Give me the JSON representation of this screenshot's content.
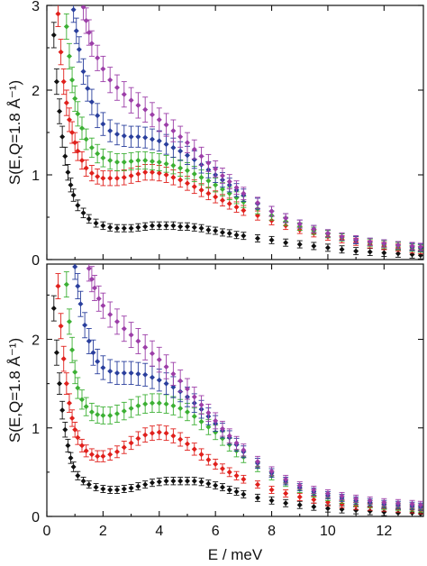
{
  "chart_data": [
    {
      "type": "scatter",
      "title": "",
      "xlabel": "",
      "ylabel": "S(E,Q=1.8 Å⁻¹)",
      "xlim": [
        0,
        13.4
      ],
      "ylim": [
        0,
        3
      ],
      "xticks": [
        0,
        2,
        4,
        6,
        8,
        10,
        12
      ],
      "yticks": [
        0,
        1,
        2,
        3
      ],
      "show_x_tick_labels": false,
      "error_bars": true,
      "series": [
        {
          "color": "#111111",
          "x": [
            0.25,
            0.35,
            0.45,
            0.55,
            0.65,
            0.75,
            0.85,
            0.95,
            1.1,
            1.3,
            1.5,
            1.75,
            2.0,
            2.25,
            2.5,
            2.75,
            3.0,
            3.25,
            3.5,
            3.75,
            4.0,
            4.25,
            4.5,
            4.75,
            5.0,
            5.25,
            5.5,
            5.75,
            6.0,
            6.25,
            6.5,
            6.75,
            7.0,
            7.5,
            8.0,
            8.5,
            9.0,
            9.5,
            10.0,
            10.5,
            11.0,
            11.5,
            12.0,
            12.5,
            13.0,
            13.3
          ],
          "y": [
            2.65,
            2.1,
            1.75,
            1.45,
            1.22,
            1.03,
            0.88,
            0.76,
            0.64,
            0.55,
            0.48,
            0.43,
            0.4,
            0.38,
            0.37,
            0.37,
            0.37,
            0.38,
            0.39,
            0.4,
            0.4,
            0.4,
            0.4,
            0.39,
            0.39,
            0.38,
            0.37,
            0.35,
            0.34,
            0.32,
            0.31,
            0.29,
            0.28,
            0.25,
            0.23,
            0.2,
            0.18,
            0.16,
            0.14,
            0.12,
            0.1,
            0.09,
            0.08,
            0.07,
            0.06,
            0.05
          ]
        },
        {
          "color": "#e0201c",
          "x": [
            0.4,
            0.5,
            0.6,
            0.7,
            0.8,
            0.9,
            1.0,
            1.1,
            1.25,
            1.4,
            1.6,
            1.8,
            2.0,
            2.25,
            2.5,
            2.75,
            3.0,
            3.25,
            3.5,
            3.75,
            4.0,
            4.25,
            4.5,
            4.75,
            5.0,
            5.25,
            5.5,
            5.75,
            6.0,
            6.25,
            6.5,
            6.75,
            7.0,
            7.5,
            8.0,
            8.5,
            9.0,
            9.5,
            10.0,
            10.5,
            11.0,
            11.5,
            12.0,
            12.5,
            13.0,
            13.3
          ],
          "y": [
            2.9,
            2.45,
            2.1,
            1.85,
            1.65,
            1.5,
            1.38,
            1.28,
            1.17,
            1.08,
            1.02,
            0.98,
            0.96,
            0.96,
            0.96,
            0.97,
            0.99,
            1.01,
            1.03,
            1.03,
            1.02,
            1.0,
            0.97,
            0.94,
            0.9,
            0.86,
            0.82,
            0.78,
            0.74,
            0.7,
            0.66,
            0.62,
            0.58,
            0.52,
            0.46,
            0.4,
            0.35,
            0.31,
            0.27,
            0.24,
            0.21,
            0.18,
            0.16,
            0.14,
            0.12,
            0.11
          ]
        },
        {
          "color": "#3cb034",
          "x": [
            0.7,
            0.8,
            0.9,
            1.0,
            1.1,
            1.25,
            1.4,
            1.6,
            1.8,
            2.0,
            2.25,
            2.5,
            2.75,
            3.0,
            3.25,
            3.5,
            3.75,
            4.0,
            4.25,
            4.5,
            4.75,
            5.0,
            5.25,
            5.5,
            5.75,
            6.0,
            6.25,
            6.5,
            6.75,
            7.0,
            7.5,
            8.0,
            8.5,
            9.0,
            9.5,
            10.0,
            10.5,
            11.0,
            11.5,
            12.0,
            12.5,
            13.0,
            13.3
          ],
          "y": [
            2.75,
            2.4,
            2.12,
            1.9,
            1.72,
            1.55,
            1.42,
            1.32,
            1.25,
            1.2,
            1.17,
            1.15,
            1.15,
            1.16,
            1.17,
            1.17,
            1.16,
            1.15,
            1.13,
            1.11,
            1.08,
            1.05,
            1.01,
            0.97,
            0.93,
            0.88,
            0.83,
            0.78,
            0.73,
            0.68,
            0.6,
            0.52,
            0.45,
            0.39,
            0.34,
            0.3,
            0.26,
            0.23,
            0.2,
            0.18,
            0.16,
            0.14,
            0.13
          ]
        },
        {
          "color": "#2a3f9d",
          "x": [
            0.95,
            1.05,
            1.15,
            1.3,
            1.45,
            1.6,
            1.8,
            2.0,
            2.25,
            2.5,
            2.75,
            3.0,
            3.25,
            3.5,
            3.75,
            4.0,
            4.25,
            4.5,
            4.75,
            5.0,
            5.25,
            5.5,
            5.75,
            6.0,
            6.25,
            6.5,
            6.75,
            7.0,
            7.5,
            8.0,
            8.5,
            9.0,
            9.5,
            10.0,
            10.5,
            11.0,
            11.5,
            12.0,
            12.5,
            13.0,
            13.3
          ],
          "y": [
            2.95,
            2.7,
            2.48,
            2.22,
            2.02,
            1.86,
            1.7,
            1.6,
            1.52,
            1.48,
            1.46,
            1.45,
            1.45,
            1.44,
            1.42,
            1.4,
            1.36,
            1.32,
            1.28,
            1.23,
            1.18,
            1.12,
            1.06,
            1.0,
            0.94,
            0.88,
            0.82,
            0.76,
            0.66,
            0.57,
            0.49,
            0.42,
            0.36,
            0.31,
            0.27,
            0.23,
            0.21,
            0.19,
            0.17,
            0.15,
            0.14
          ]
        },
        {
          "color": "#9c3ea8",
          "x": [
            1.3,
            1.4,
            1.5,
            1.6,
            1.8,
            2.0,
            2.25,
            2.5,
            2.75,
            3.0,
            3.25,
            3.5,
            3.75,
            4.0,
            4.25,
            4.5,
            4.75,
            5.0,
            5.25,
            5.5,
            5.75,
            6.0,
            6.25,
            6.5,
            6.75,
            7.0,
            7.5,
            8.0,
            8.5,
            9.0,
            9.5,
            10.0,
            10.5,
            11.0,
            11.5,
            12.0,
            12.5,
            13.0,
            13.3
          ],
          "y": [
            2.98,
            2.82,
            2.68,
            2.55,
            2.38,
            2.25,
            2.12,
            2.03,
            1.95,
            1.88,
            1.82,
            1.77,
            1.71,
            1.65,
            1.59,
            1.52,
            1.45,
            1.38,
            1.3,
            1.22,
            1.14,
            1.07,
            0.99,
            0.92,
            0.85,
            0.78,
            0.67,
            0.57,
            0.49,
            0.42,
            0.36,
            0.31,
            0.27,
            0.24,
            0.21,
            0.19,
            0.17,
            0.16,
            0.15
          ]
        }
      ]
    },
    {
      "type": "scatter",
      "title": "",
      "xlabel": "E / meV",
      "ylabel": "S(E,Q=1.8 Å⁻¹)",
      "xlim": [
        0,
        13.4
      ],
      "ylim": [
        0,
        2.85
      ],
      "xticks": [
        0,
        2,
        4,
        6,
        8,
        10,
        12
      ],
      "yticks": [
        0,
        1,
        2
      ],
      "show_x_tick_labels": true,
      "error_bars": true,
      "series": [
        {
          "color": "#111111",
          "x": [
            0.25,
            0.35,
            0.45,
            0.55,
            0.65,
            0.75,
            0.85,
            0.95,
            1.1,
            1.3,
            1.5,
            1.75,
            2.0,
            2.25,
            2.5,
            2.75,
            3.0,
            3.25,
            3.5,
            3.75,
            4.0,
            4.25,
            4.5,
            4.75,
            5.0,
            5.25,
            5.5,
            5.75,
            6.0,
            6.25,
            6.5,
            6.75,
            7.0,
            7.5,
            8.0,
            8.5,
            9.0,
            9.5,
            10.0,
            10.5,
            11.0,
            11.5,
            12.0,
            12.5,
            13.0,
            13.3
          ],
          "y": [
            2.35,
            1.85,
            1.5,
            1.2,
            0.98,
            0.8,
            0.66,
            0.56,
            0.46,
            0.4,
            0.36,
            0.33,
            0.31,
            0.3,
            0.3,
            0.31,
            0.32,
            0.34,
            0.36,
            0.38,
            0.39,
            0.4,
            0.4,
            0.4,
            0.4,
            0.4,
            0.39,
            0.37,
            0.35,
            0.33,
            0.3,
            0.28,
            0.25,
            0.21,
            0.18,
            0.15,
            0.13,
            0.11,
            0.09,
            0.08,
            0.07,
            0.06,
            0.05,
            0.04,
            0.04,
            0.03
          ]
        },
        {
          "color": "#e0201c",
          "x": [
            0.4,
            0.5,
            0.6,
            0.7,
            0.8,
            0.9,
            1.0,
            1.1,
            1.25,
            1.4,
            1.6,
            1.8,
            2.0,
            2.25,
            2.5,
            2.75,
            3.0,
            3.25,
            3.5,
            3.75,
            4.0,
            4.25,
            4.5,
            4.75,
            5.0,
            5.25,
            5.5,
            5.75,
            6.0,
            6.25,
            6.5,
            6.75,
            7.0,
            7.5,
            8.0,
            8.5,
            9.0,
            9.5,
            10.0,
            10.5,
            11.0,
            11.5,
            12.0,
            12.5,
            13.0,
            13.3
          ],
          "y": [
            2.6,
            2.15,
            1.78,
            1.5,
            1.28,
            1.11,
            0.98,
            0.89,
            0.8,
            0.74,
            0.7,
            0.68,
            0.68,
            0.7,
            0.73,
            0.78,
            0.83,
            0.88,
            0.92,
            0.94,
            0.95,
            0.94,
            0.91,
            0.87,
            0.82,
            0.76,
            0.7,
            0.64,
            0.59,
            0.54,
            0.5,
            0.46,
            0.42,
            0.36,
            0.3,
            0.26,
            0.22,
            0.19,
            0.16,
            0.14,
            0.12,
            0.11,
            0.1,
            0.09,
            0.08,
            0.07
          ]
        },
        {
          "color": "#3cb034",
          "x": [
            0.7,
            0.8,
            0.9,
            1.0,
            1.1,
            1.25,
            1.4,
            1.6,
            1.8,
            2.0,
            2.25,
            2.5,
            2.75,
            3.0,
            3.25,
            3.5,
            3.75,
            4.0,
            4.25,
            4.5,
            4.75,
            5.0,
            5.25,
            5.5,
            5.75,
            6.0,
            6.25,
            6.5,
            6.75,
            7.0,
            7.5,
            8.0,
            8.5,
            9.0,
            9.5,
            10.0,
            10.5,
            11.0,
            11.5,
            12.0,
            12.5,
            13.0,
            13.3
          ],
          "y": [
            2.62,
            2.2,
            1.88,
            1.63,
            1.45,
            1.32,
            1.24,
            1.18,
            1.15,
            1.14,
            1.14,
            1.16,
            1.19,
            1.22,
            1.25,
            1.27,
            1.28,
            1.28,
            1.27,
            1.25,
            1.22,
            1.18,
            1.13,
            1.07,
            1.01,
            0.95,
            0.88,
            0.81,
            0.74,
            0.67,
            0.56,
            0.46,
            0.38,
            0.31,
            0.26,
            0.22,
            0.19,
            0.16,
            0.14,
            0.12,
            0.11,
            0.1,
            0.09
          ]
        },
        {
          "color": "#2a3f9d",
          "x": [
            1.0,
            1.1,
            1.2,
            1.35,
            1.5,
            1.65,
            1.8,
            2.0,
            2.25,
            2.5,
            2.75,
            3.0,
            3.25,
            3.5,
            3.75,
            4.0,
            4.25,
            4.5,
            4.75,
            5.0,
            5.25,
            5.5,
            5.75,
            6.0,
            6.25,
            6.5,
            6.75,
            7.0,
            7.5,
            8.0,
            8.5,
            9.0,
            9.5,
            10.0,
            10.5,
            11.0,
            11.5,
            12.0,
            12.5,
            13.0,
            13.3
          ],
          "y": [
            2.82,
            2.6,
            2.4,
            2.16,
            1.98,
            1.85,
            1.75,
            1.68,
            1.64,
            1.62,
            1.62,
            1.62,
            1.61,
            1.6,
            1.57,
            1.54,
            1.5,
            1.46,
            1.41,
            1.35,
            1.28,
            1.21,
            1.13,
            1.05,
            0.97,
            0.89,
            0.81,
            0.73,
            0.6,
            0.49,
            0.4,
            0.33,
            0.28,
            0.24,
            0.21,
            0.18,
            0.16,
            0.14,
            0.13,
            0.12,
            0.11
          ]
        },
        {
          "color": "#9c3ea8",
          "x": [
            1.5,
            1.6,
            1.7,
            1.85,
            2.0,
            2.25,
            2.5,
            2.75,
            3.0,
            3.25,
            3.5,
            3.75,
            4.0,
            4.25,
            4.5,
            4.75,
            5.0,
            5.25,
            5.5,
            5.75,
            6.0,
            6.25,
            6.5,
            6.75,
            7.0,
            7.5,
            8.0,
            8.5,
            9.0,
            9.5,
            10.0,
            10.5,
            11.0,
            11.5,
            12.0,
            12.5,
            13.0,
            13.3
          ],
          "y": [
            2.8,
            2.68,
            2.58,
            2.46,
            2.38,
            2.28,
            2.2,
            2.12,
            2.05,
            1.98,
            1.91,
            1.84,
            1.77,
            1.69,
            1.61,
            1.53,
            1.44,
            1.35,
            1.26,
            1.17,
            1.08,
            0.99,
            0.91,
            0.83,
            0.75,
            0.62,
            0.51,
            0.42,
            0.35,
            0.3,
            0.26,
            0.23,
            0.2,
            0.18,
            0.16,
            0.15,
            0.14,
            0.13
          ]
        }
      ]
    }
  ]
}
